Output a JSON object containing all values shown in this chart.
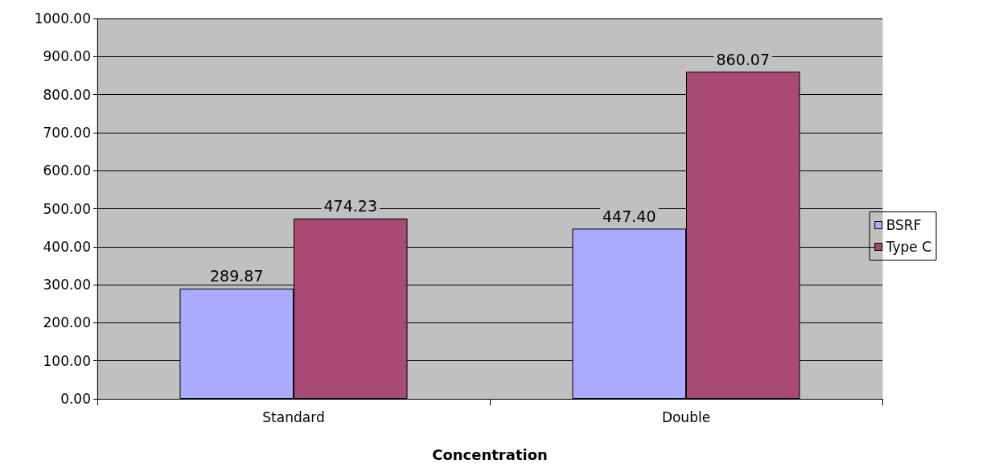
{
  "chart_data": {
    "type": "bar",
    "xlabel": "Concentration",
    "categories": [
      "Standard",
      "Double"
    ],
    "series": [
      {
        "name": "BSRF",
        "color": "#aaaaff",
        "values": [
          289.87,
          447.4
        ],
        "value_labels": [
          "289.87",
          "447.40"
        ]
      },
      {
        "name": "Type C",
        "color": "#a94a76",
        "values": [
          474.23,
          860.07
        ],
        "value_labels": [
          "474.23",
          "860.07"
        ]
      }
    ],
    "ylim": [
      0,
      1000
    ],
    "yticks": [
      {
        "value": 0,
        "label": "0.00"
      },
      {
        "value": 100,
        "label": "100.00"
      },
      {
        "value": 200,
        "label": "200.00"
      },
      {
        "value": 300,
        "label": "300.00"
      },
      {
        "value": 400,
        "label": "400.00"
      },
      {
        "value": 500,
        "label": "500.00"
      },
      {
        "value": 600,
        "label": "600.00"
      },
      {
        "value": 700,
        "label": "700.00"
      },
      {
        "value": 800,
        "label": "800.00"
      },
      {
        "value": 900,
        "label": "900.00"
      },
      {
        "value": 1000,
        "label": "1000.00"
      }
    ],
    "grid": "y",
    "legend": "right"
  }
}
